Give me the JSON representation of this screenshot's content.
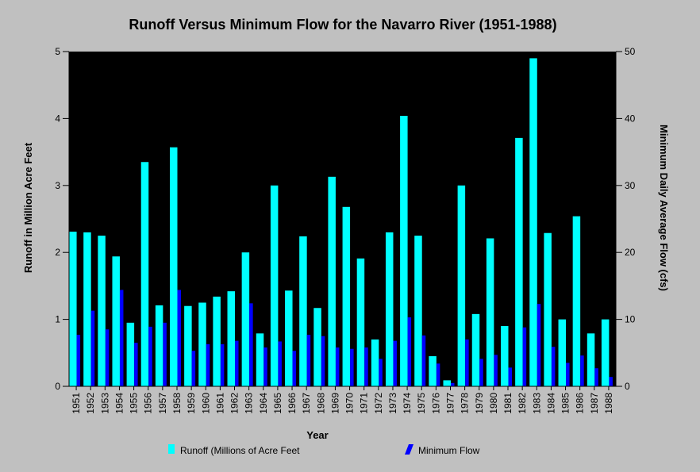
{
  "chart_data": {
    "type": "bar",
    "title": "Runoff Versus Minimum Flow for the Navarro River (1951-1988)",
    "xlabel": "Year",
    "ylabel_left": "Runoff in Million Acre Feet",
    "ylabel_right": "Minimum Daily Average Flow (cfs)",
    "ylim_left": [
      0,
      5
    ],
    "ylim_right": [
      0,
      50
    ],
    "yticks_left": [
      "0",
      "1",
      "2",
      "3",
      "4",
      "5"
    ],
    "yticks_right": [
      "0",
      "10",
      "20",
      "30",
      "40",
      "50"
    ],
    "grid": false,
    "legend_position": "bottom",
    "categories": [
      "1951",
      "1952",
      "1953",
      "1954",
      "1955",
      "1956",
      "1957",
      "1958",
      "1959",
      "1960",
      "1961",
      "1962",
      "1963",
      "1964",
      "1965",
      "1966",
      "1967",
      "1968",
      "1969",
      "1970",
      "1971",
      "1972",
      "1973",
      "1974",
      "1975",
      "1976",
      "1977",
      "1978",
      "1979",
      "1980",
      "1981",
      "1982",
      "1983",
      "1984",
      "1985",
      "1986",
      "1987",
      "1988"
    ],
    "series": [
      {
        "name": "Runoff (Millions of Acre Feet",
        "axis": "left",
        "color": "#00ffff",
        "values": [
          2.31,
          2.3,
          2.25,
          1.94,
          0.95,
          3.35,
          1.21,
          3.57,
          1.2,
          1.25,
          1.34,
          1.42,
          2.0,
          0.79,
          3.0,
          1.43,
          2.24,
          1.17,
          3.13,
          2.68,
          1.91,
          0.7,
          2.3,
          4.04,
          2.25,
          0.45,
          0.09,
          3.0,
          1.08,
          2.21,
          0.9,
          3.71,
          4.9,
          2.29,
          1.0,
          2.54,
          0.79,
          1.0
        ]
      },
      {
        "name": "Minimum Flow",
        "axis": "right",
        "color": "#0000ff",
        "values": [
          7.7,
          11.3,
          8.5,
          14.4,
          6.5,
          8.9,
          9.5,
          14.4,
          5.3,
          6.3,
          6.3,
          6.8,
          12.4,
          5.8,
          6.7,
          5.3,
          7.7,
          7.5,
          5.8,
          5.6,
          5.8,
          4.1,
          6.8,
          10.3,
          7.6,
          3.4,
          0.5,
          7.0,
          4.1,
          4.7,
          2.8,
          8.8,
          12.3,
          5.9,
          3.5,
          4.6,
          2.7,
          1.4
        ]
      }
    ]
  }
}
